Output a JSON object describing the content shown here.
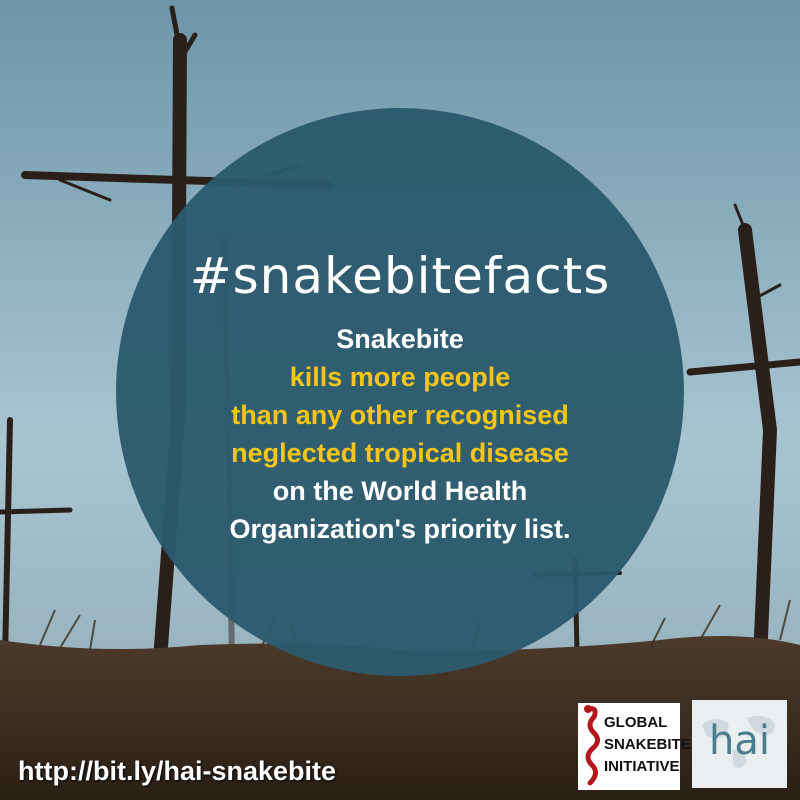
{
  "hashtag": "#snakebitefacts",
  "fact_lines": [
    {
      "text": "Snakebite",
      "color": "#ffffff"
    },
    {
      "text": "kills more people",
      "color": "#f5c518"
    },
    {
      "text": "than any other recognised",
      "color": "#f5c518"
    },
    {
      "text": "neglected tropical disease",
      "color": "#f5c518"
    },
    {
      "text": "on the World Health",
      "color": "#ffffff"
    },
    {
      "text": "Organization's priority list.",
      "color": "#ffffff"
    }
  ],
  "url": "http://bit.ly/hai-snakebite",
  "logos": {
    "gsi": {
      "lines": [
        "GLOBAL",
        "SNAKEBITE",
        "INITIATIVE"
      ],
      "snake_color": "#b3171c"
    },
    "hai": {
      "text": "hai"
    }
  },
  "colors": {
    "sky_top": "#6f97ab",
    "sky_bottom": "#a9c6d2",
    "circle": "#2c5a6d",
    "ground": "#3a2a1c"
  }
}
